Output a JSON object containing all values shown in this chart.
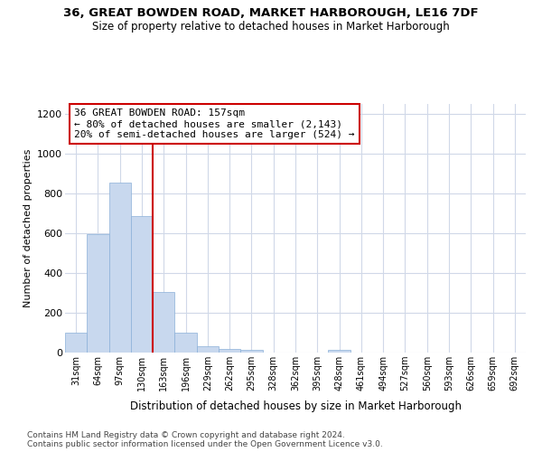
{
  "title1": "36, GREAT BOWDEN ROAD, MARKET HARBOROUGH, LE16 7DF",
  "title2": "Size of property relative to detached houses in Market Harborough",
  "xlabel": "Distribution of detached houses by size in Market Harborough",
  "ylabel": "Number of detached properties",
  "footnote1": "Contains HM Land Registry data © Crown copyright and database right 2024.",
  "footnote2": "Contains public sector information licensed under the Open Government Licence v3.0.",
  "categories": [
    "31sqm",
    "64sqm",
    "97sqm",
    "130sqm",
    "163sqm",
    "196sqm",
    "229sqm",
    "262sqm",
    "295sqm",
    "328sqm",
    "362sqm",
    "395sqm",
    "428sqm",
    "461sqm",
    "494sqm",
    "527sqm",
    "560sqm",
    "593sqm",
    "626sqm",
    "659sqm",
    "692sqm"
  ],
  "values": [
    100,
    595,
    855,
    685,
    305,
    100,
    33,
    20,
    13,
    0,
    0,
    0,
    13,
    0,
    0,
    0,
    0,
    0,
    0,
    0,
    0
  ],
  "bar_color": "#c8d8ee",
  "bar_edge_color": "#8ab0d8",
  "ylim": [
    0,
    1250
  ],
  "yticks": [
    0,
    200,
    400,
    600,
    800,
    1000,
    1200
  ],
  "annotation_text1": "36 GREAT BOWDEN ROAD: 157sqm",
  "annotation_text2": "← 80% of detached houses are smaller (2,143)",
  "annotation_text3": "20% of semi-detached houses are larger (524) →",
  "annotation_box_color": "#ffffff",
  "annotation_border_color": "#cc0000",
  "line_color": "#cc0000",
  "background_color": "#ffffff",
  "grid_color": "#d0d8e8"
}
